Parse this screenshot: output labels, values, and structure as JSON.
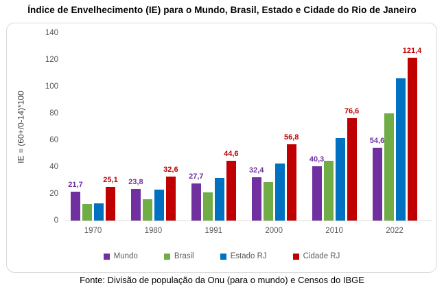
{
  "title": "Índice de Envelhecimento (IE) para o Mundo, Brasil, Estado e Cidade do Rio de Janeiro",
  "footer": "Fonte: Divisão de população da Onu (para o mundo) e Censos do IBGE",
  "colors": {
    "mundo": "#7030A0",
    "brasil": "#70AD47",
    "estado_rj": "#0070C0",
    "cidade_rj": "#C00000",
    "axis_text": "#595959",
    "axis_line": "#D9D9D9",
    "border": "#D9D9D9"
  },
  "chart_data": {
    "type": "bar",
    "title": "Índice de Envelhecimento (IE) para o Mundo, Brasil, Estado e Cidade do Rio de Janeiro",
    "xlabel": "",
    "ylabel": "IE = (60+/0-14)*100",
    "ylim": [
      0,
      140
    ],
    "yticks": [
      0,
      20,
      40,
      60,
      80,
      100,
      120,
      140
    ],
    "grid": false,
    "legend_position": "bottom",
    "categories": [
      "1970",
      "1980",
      "1991",
      "2000",
      "2010",
      "2022"
    ],
    "series": [
      {
        "name": "Mundo",
        "color": "#7030A0",
        "values": [
          21.7,
          23.8,
          27.7,
          32.4,
          40.3,
          54.6
        ],
        "labels": [
          "21,7",
          "23,8",
          "27,7",
          "32,4",
          "40,3",
          "54,6"
        ],
        "show_labels": true
      },
      {
        "name": "Brasil",
        "color": "#70AD47",
        "values": [
          12.1,
          16.1,
          21.0,
          28.9,
          44.8,
          80.0
        ],
        "labels": [],
        "show_labels": false
      },
      {
        "name": "Estado RJ",
        "color": "#0070C0",
        "values": [
          12.6,
          23.3,
          32.0,
          42.6,
          61.5,
          106.0
        ],
        "labels": [],
        "show_labels": false
      },
      {
        "name": "Cidade RJ",
        "color": "#C00000",
        "values": [
          25.1,
          32.6,
          44.6,
          56.8,
          76.6,
          121.4
        ],
        "labels": [
          "25,1",
          "32,6",
          "44,6",
          "56,8",
          "76,6",
          "121,4"
        ],
        "show_labels": true
      }
    ]
  }
}
